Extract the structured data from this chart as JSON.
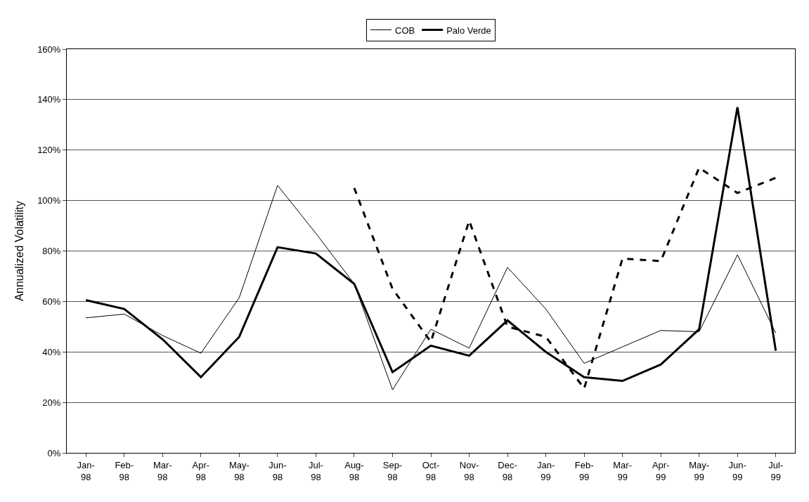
{
  "chart_data": {
    "type": "line",
    "ylabel": "Annualized Volatility",
    "categories": [
      "Jan-\n98",
      "Feb-\n98",
      "Mar-\n98",
      "Apr-\n98",
      "May-\n98",
      "Jun-\n98",
      "Jul-\n98",
      "Aug-\n98",
      "Sep-\n98",
      "Oct-\n98",
      "Nov-\n98",
      "Dec-\n98",
      "Jan-\n99",
      "Feb-\n99",
      "Mar-\n99",
      "Apr-\n99",
      "May-\n99",
      "Jun-\n99",
      "Jul-\n99"
    ],
    "series": [
      {
        "color": "#000000",
        "line_style": "dashed",
        "values": [
          null,
          null,
          null,
          null,
          null,
          null,
          null,
          105,
          65,
          44,
          92,
          50,
          46,
          25.5,
          77,
          76,
          113,
          103,
          109
        ]
      },
      {
        "name": "COB",
        "color": "#000000",
        "line_style": "solid",
        "values": [
          53.5,
          55,
          46.5,
          39.5,
          61.5,
          106,
          87,
          67,
          25,
          49,
          41.5,
          73.5,
          57,
          35.5,
          42,
          48.5,
          48,
          78.5,
          47.5
        ]
      },
      {
        "name": "Palo Verde",
        "color": "#000000",
        "line_style": "solid",
        "values": [
          60.5,
          57,
          45,
          30,
          46,
          81.5,
          79,
          67,
          32,
          42.5,
          38.5,
          52.5,
          40,
          30,
          28.5,
          35,
          49,
          137,
          40.5
        ]
      }
    ],
    "ylim": [
      0,
      160
    ],
    "yticks": [
      {
        "value": 0,
        "label": "0%"
      },
      {
        "value": 20,
        "label": "20%"
      },
      {
        "value": 40,
        "label": "40%"
      },
      {
        "value": 60,
        "label": "60%"
      },
      {
        "value": 80,
        "label": "80%"
      },
      {
        "value": 100,
        "label": "100%"
      },
      {
        "value": 120,
        "label": "120%"
      },
      {
        "value": 140,
        "label": "140%"
      },
      {
        "value": 160,
        "label": "160%"
      }
    ],
    "grid": "y",
    "legend": "top",
    "marker": "none"
  }
}
